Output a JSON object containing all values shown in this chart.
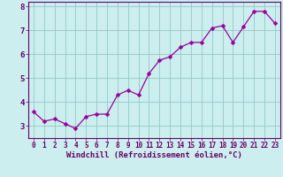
{
  "x": [
    0,
    1,
    2,
    3,
    4,
    5,
    6,
    7,
    8,
    9,
    10,
    11,
    12,
    13,
    14,
    15,
    16,
    17,
    18,
    19,
    20,
    21,
    22,
    23
  ],
  "y": [
    3.6,
    3.2,
    3.3,
    3.1,
    2.9,
    3.4,
    3.5,
    3.5,
    4.3,
    4.5,
    4.3,
    5.2,
    5.75,
    5.9,
    6.3,
    6.5,
    6.5,
    7.1,
    7.2,
    6.5,
    7.15,
    7.8,
    7.8,
    7.3
  ],
  "line_color": "#990099",
  "marker_color": "#990099",
  "bg_color": "#cceeee",
  "grid_color": "#99cccc",
  "axis_line_color": "#660066",
  "tick_label_color": "#660066",
  "xlabel": "Windchill (Refroidissement éolien,°C)",
  "xlim_lo": -0.5,
  "xlim_hi": 23.5,
  "ylim_lo": 2.5,
  "ylim_hi": 8.2,
  "yticks": [
    3,
    4,
    5,
    6,
    7,
    8
  ],
  "xticks": [
    0,
    1,
    2,
    3,
    4,
    5,
    6,
    7,
    8,
    9,
    10,
    11,
    12,
    13,
    14,
    15,
    16,
    17,
    18,
    19,
    20,
    21,
    22,
    23
  ],
  "tick_fontsize": 5.5,
  "xlabel_fontsize": 6.5
}
